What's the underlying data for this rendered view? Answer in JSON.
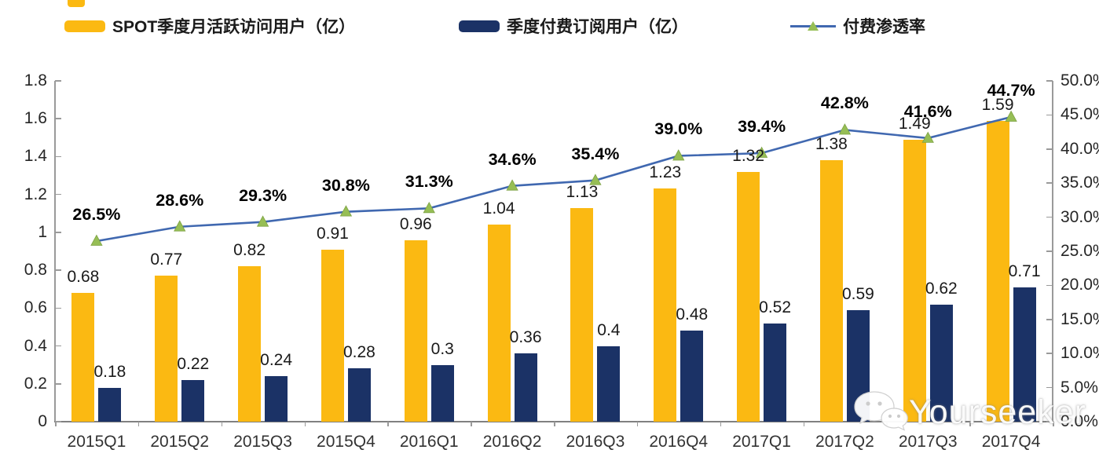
{
  "watermark": {
    "text": "Yourseeker",
    "icon": "wechat-icon"
  },
  "legend": {
    "items": [
      {
        "label": "SPOT季度月活跃访问用户（亿）",
        "swatch": "bar"
      },
      {
        "label": "季度付费订阅用户（亿）",
        "swatch": "bar"
      },
      {
        "label": "付费渗透率",
        "swatch": "line-with-triangle-marker"
      }
    ]
  },
  "chart_data": {
    "type": "combo-bar-line",
    "categories": [
      "2015Q1",
      "2015Q2",
      "2015Q3",
      "2015Q4",
      "2016Q1",
      "2016Q2",
      "2016Q3",
      "2016Q4",
      "2017Q1",
      "2017Q2",
      "2017Q3",
      "2017Q4"
    ],
    "series": [
      {
        "name": "SPOT季度月活跃访问用户（亿）",
        "type": "bar",
        "axis": "left",
        "color": "#FBB912",
        "values": [
          0.68,
          0.77,
          0.82,
          0.91,
          0.96,
          1.04,
          1.13,
          1.23,
          1.32,
          1.38,
          1.49,
          1.59
        ]
      },
      {
        "name": "季度付费订阅用户（亿）",
        "type": "bar",
        "axis": "left",
        "color": "#1B3266",
        "values": [
          0.18,
          0.22,
          0.24,
          0.28,
          0.3,
          0.36,
          0.4,
          0.48,
          0.52,
          0.59,
          0.62,
          0.71
        ]
      },
      {
        "name": "付费渗透率",
        "type": "line",
        "axis": "right",
        "color": "#4068B0",
        "marker": "triangle",
        "marker_color": "#96BE55",
        "values": [
          26.5,
          28.6,
          29.3,
          30.8,
          31.3,
          34.6,
          35.4,
          39.0,
          39.4,
          42.8,
          41.6,
          44.7
        ],
        "labels": [
          "26.5%",
          "28.6%",
          "29.3%",
          "30.8%",
          "31.3%",
          "34.6%",
          "35.4%",
          "39.0%",
          "39.4%",
          "42.8%",
          "41.6%",
          "44.7%"
        ]
      }
    ],
    "left_axis": {
      "min": 0,
      "max": 1.8,
      "tick_labels": [
        "0",
        "0.2",
        "0.4",
        "0.6",
        "0.8",
        "1",
        "1.2",
        "1.4",
        "1.6",
        "1.8"
      ]
    },
    "right_axis": {
      "min": 0,
      "max": 50,
      "tick_labels": [
        "0.0%",
        "5.0%",
        "10.0%",
        "15.0%",
        "20.0%",
        "25.0%",
        "30.0%",
        "35.0%",
        "40.0%",
        "45.0%",
        "50.0%"
      ]
    },
    "grid": false,
    "legend_position": "top"
  }
}
